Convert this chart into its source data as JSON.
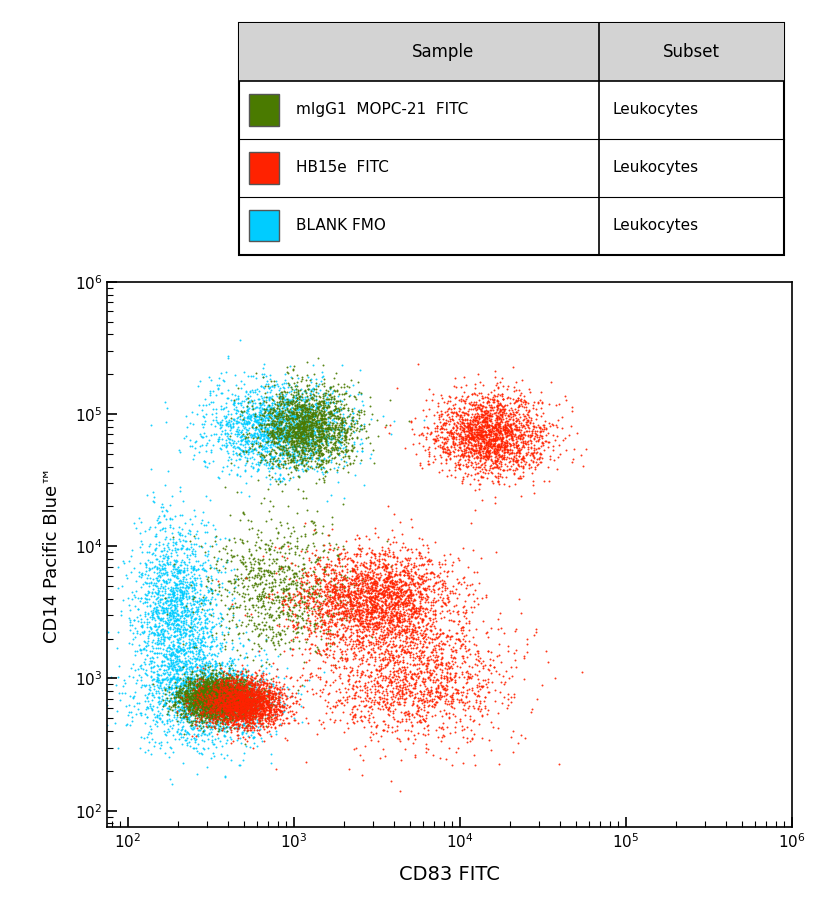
{
  "xlabel": "CD83 FITC",
  "ylabel": "CD14 Pacific Blue™",
  "xlim_log": [
    1.875,
    6
  ],
  "ylim_log": [
    1.875,
    6
  ],
  "background_color": "#ffffff",
  "plot_bg_color": "#ffffff",
  "colors": {
    "green": "#4a7a00",
    "red": "#ff2200",
    "cyan": "#00ccff"
  },
  "legend": {
    "headers": [
      "Sample",
      "Subset"
    ],
    "rows": [
      {
        "color": "#4a7a00",
        "sample": "mIgG1  MOPC-21  FITC",
        "subset": "Leukocytes"
      },
      {
        "color": "#ff2200",
        "sample": "HB15e  FITC",
        "subset": "Leukocytes"
      },
      {
        "color": "#00ccff",
        "sample": "BLANK FMO",
        "subset": "Leukocytes"
      }
    ]
  },
  "seeds": {
    "green": 42,
    "red": 123,
    "cyan": 7
  },
  "n_points": {
    "green": 6000,
    "red": 8000,
    "cyan": 5000
  }
}
